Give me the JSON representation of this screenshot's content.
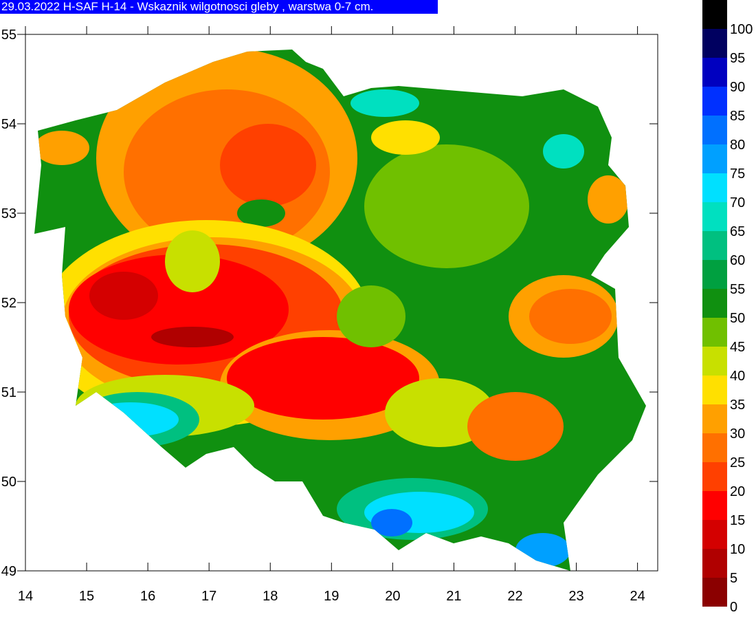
{
  "title": "29.03.2022 H-SAF H-14 - Wskaznik wilgotnosci gleby , warstwa 0-7 cm.",
  "map": {
    "xlim": [
      14,
      24.33
    ],
    "ylim": [
      49,
      55
    ],
    "xticks": [
      14,
      15,
      16,
      17,
      18,
      19,
      20,
      21,
      22,
      23,
      24
    ],
    "yticks": [
      49,
      50,
      51,
      52,
      53,
      54,
      55
    ],
    "legend": {
      "ticks": [
        0,
        5,
        10,
        15,
        20,
        25,
        30,
        35,
        40,
        45,
        50,
        55,
        60,
        65,
        70,
        75,
        80,
        85,
        90,
        95,
        100
      ],
      "colors": [
        "#8b0000",
        "#b00000",
        "#d40000",
        "#ff0000",
        "#ff4000",
        "#ff7000",
        "#ffa000",
        "#ffe000",
        "#c8e000",
        "#70c000",
        "#109010",
        "#00a040",
        "#00c080",
        "#00e0c0",
        "#00e0ff",
        "#00a0ff",
        "#0070ff",
        "#0030ff",
        "#0000c0",
        "#000060",
        "#000000"
      ]
    }
  }
}
